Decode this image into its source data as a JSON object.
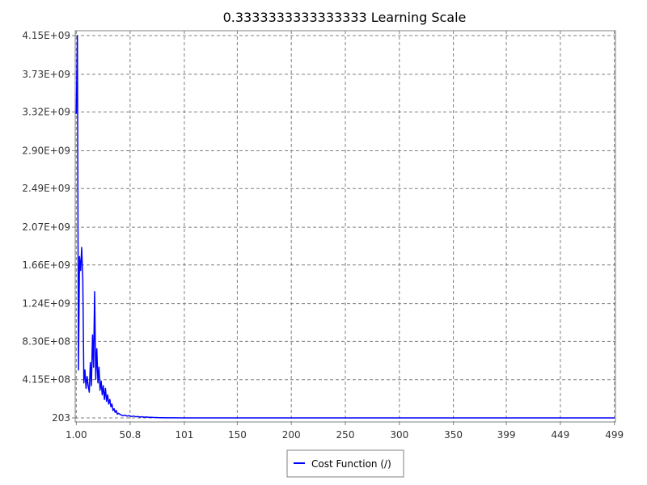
{
  "chart_data": {
    "type": "line",
    "title": "0.3333333333333333 Learning Scale",
    "xlabel": "",
    "ylabel": "",
    "xlim": [
      0,
      500
    ],
    "ylim": [
      203,
      4150000000
    ],
    "x_ticks": [
      {
        "value": 1,
        "label": "1.00"
      },
      {
        "value": 50.8,
        "label": "50.8"
      },
      {
        "value": 101,
        "label": "101"
      },
      {
        "value": 150,
        "label": "150"
      },
      {
        "value": 200,
        "label": "200"
      },
      {
        "value": 250,
        "label": "250"
      },
      {
        "value": 300,
        "label": "300"
      },
      {
        "value": 350,
        "label": "350"
      },
      {
        "value": 399,
        "label": "399"
      },
      {
        "value": 449,
        "label": "449"
      },
      {
        "value": 499,
        "label": "499"
      }
    ],
    "y_ticks": [
      {
        "value": 203,
        "label": "203"
      },
      {
        "value": 415000000,
        "label": "4.15E+08"
      },
      {
        "value": 830000000,
        "label": "8.30E+08"
      },
      {
        "value": 1240000000,
        "label": "1.24E+09"
      },
      {
        "value": 1660000000,
        "label": "1.66E+09"
      },
      {
        "value": 2070000000,
        "label": "2.07E+09"
      },
      {
        "value": 2490000000,
        "label": "2.49E+09"
      },
      {
        "value": 2900000000,
        "label": "2.90E+09"
      },
      {
        "value": 3320000000,
        "label": "3.32E+09"
      },
      {
        "value": 3730000000,
        "label": "3.73E+09"
      },
      {
        "value": 4150000000,
        "label": "4.15E+09"
      }
    ],
    "grid": true,
    "legend_position": "bottom",
    "series": [
      {
        "name": "Cost Function (/)",
        "color": "#0000ff",
        "x": [
          1,
          2,
          3,
          4,
          5,
          6,
          7,
          8,
          9,
          10,
          11,
          12,
          13,
          14,
          15,
          16,
          17,
          18,
          19,
          20,
          21,
          22,
          23,
          24,
          25,
          26,
          27,
          28,
          29,
          30,
          31,
          32,
          33,
          34,
          35,
          36,
          37,
          38,
          39,
          40,
          42,
          44,
          46,
          48,
          50,
          52,
          54,
          56,
          58,
          60,
          62,
          64,
          66,
          68,
          70,
          72,
          75,
          78,
          80,
          85,
          90,
          100,
          150,
          200,
          250,
          300,
          350,
          400,
          450,
          499
        ],
        "y": [
          3300000000,
          4150000000,
          520000000,
          1750000000,
          1600000000,
          1850000000,
          1500000000,
          380000000,
          520000000,
          320000000,
          450000000,
          350000000,
          280000000,
          600000000,
          350000000,
          900000000,
          550000000,
          1370000000,
          420000000,
          750000000,
          380000000,
          550000000,
          300000000,
          400000000,
          250000000,
          350000000,
          200000000,
          320000000,
          180000000,
          250000000,
          150000000,
          200000000,
          120000000,
          150000000,
          80000000,
          100000000,
          60000000,
          80000000,
          40000000,
          50000000,
          35000000,
          25000000,
          30000000,
          20000000,
          25000000,
          15000000,
          20000000,
          12000000,
          15000000,
          10000000,
          12000000,
          8000000,
          10000000,
          6000000,
          7000000,
          5000000,
          4000000,
          3000000,
          2000000,
          1000000,
          500000,
          100000,
          1000,
          500,
          300,
          250,
          220,
          210,
          205,
          203
        ]
      }
    ]
  }
}
